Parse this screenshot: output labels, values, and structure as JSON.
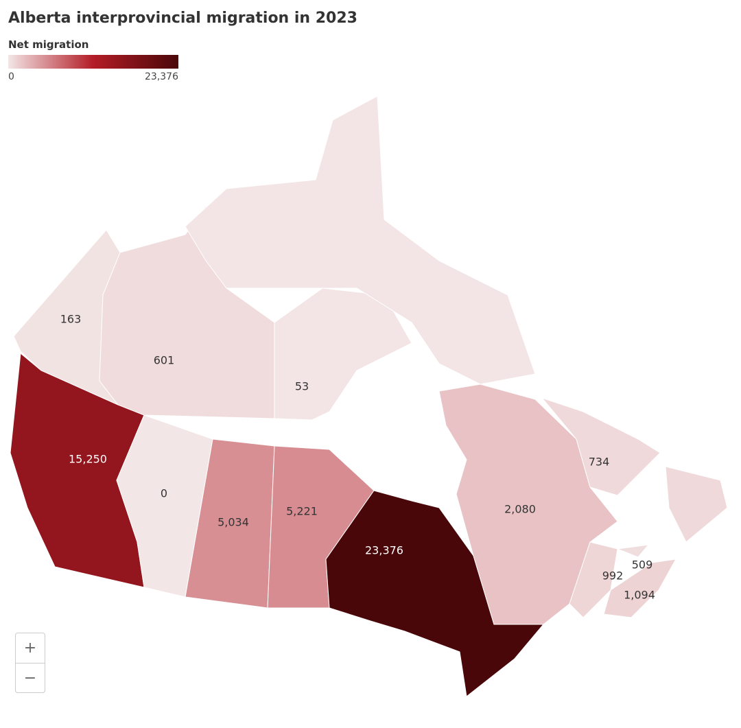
{
  "title": "Alberta interprovincial migration in 2023",
  "legend": {
    "title": "Net migration",
    "min": 0,
    "max": {
      "value": 23376,
      "label": "23,376"
    },
    "colors": [
      "#f3e6e6",
      "#b31d27",
      "#4a0709"
    ]
  },
  "regions": {
    "values": [
      163,
      601,
      53,
      15250,
      0,
      5034,
      5221,
      23376,
      2080,
      734,
      992,
      509,
      1094
    ],
    "value_labels": [
      "163",
      "601",
      "53",
      "15,250",
      "0",
      "5,034",
      "5,221",
      "23,376",
      "2,080",
      "734",
      "992",
      "509",
      "1,094"
    ]
  },
  "zoom": {
    "in": "+",
    "out": "−"
  }
}
